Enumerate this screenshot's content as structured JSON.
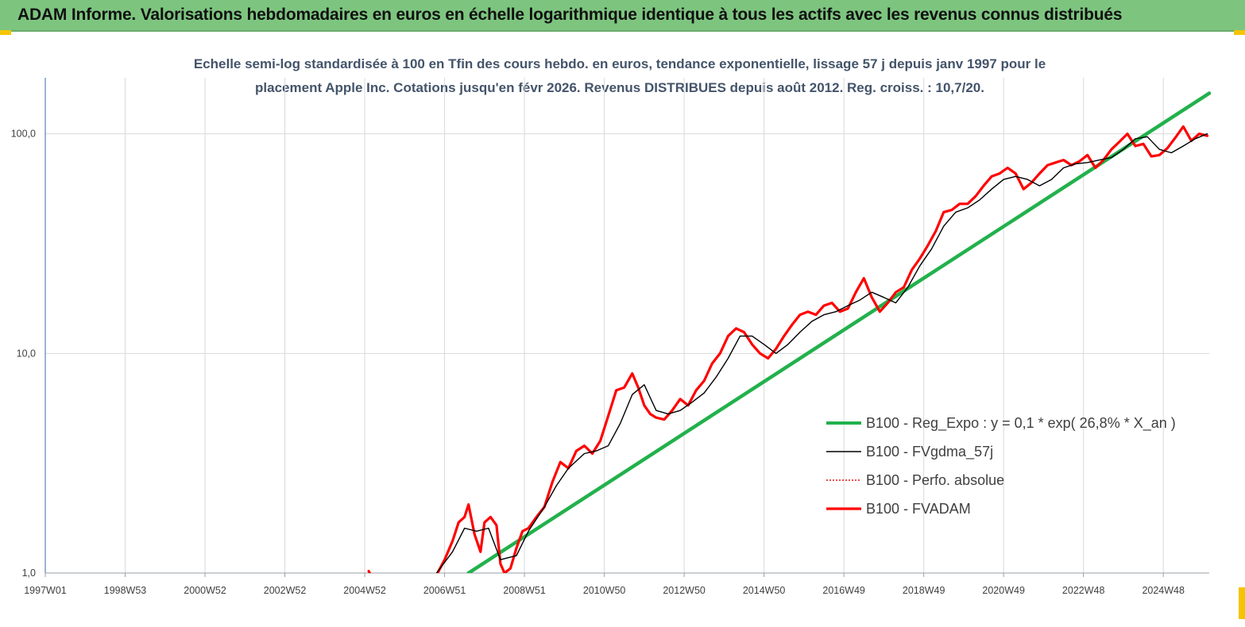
{
  "banner": {
    "title": "ADAM Informe. Valorisations hebdomadaires en euros en échelle logarithmique identique à tous les actifs avec les revenus connus distribués"
  },
  "colors": {
    "banner": "#7dc57f",
    "corner": "#f5c400",
    "regression": "#22b14c",
    "smoothed": "#000000",
    "absolute": "#e81010",
    "fvadam": "#ff0000"
  },
  "chart_data": {
    "type": "line",
    "title_lines": [
      "Echelle semi-log standardisée à 100 en Tfin des cours hebdo. en euros, tendance exponentielle, lissage 57 j depuis janv 1997 pour le",
      "placement Apple Inc.  Cotations jusqu'en févr 2026. Revenus DISTRIBUES depuis août 2012.  Reg. croiss. : 10,7/20."
    ],
    "y_scale": "log",
    "ylim": [
      1,
      180
    ],
    "xlim": [
      1997.0,
      2026.15
    ],
    "grid": true,
    "legend_position": "right",
    "x_tick_labels": [
      "1997W01",
      "1998W53",
      "2000W52",
      "2002W52",
      "2004W52",
      "2006W51",
      "2008W51",
      "2010W50",
      "2012W50",
      "2014W50",
      "2016W49",
      "2018W49",
      "2020W49",
      "2022W48",
      "2024W48"
    ],
    "x_tick_years": [
      1997.0,
      1999.0,
      2001.0,
      2003.0,
      2005.0,
      2007.0,
      2009.0,
      2011.0,
      2013.0,
      2015.0,
      2017.0,
      2019.0,
      2021.0,
      2023.0,
      2025.0
    ],
    "y_tick_labels": [
      "1,0",
      "10,0",
      "100,0"
    ],
    "y_tick_values": [
      1,
      10,
      100
    ],
    "legend": [
      {
        "key": "regression",
        "label": "B100 - Reg_Expo : y = 0,1 * exp( 26,8% *  X_an )"
      },
      {
        "key": "smoothed",
        "label": "B100 - FVgdma_57j"
      },
      {
        "key": "absolute",
        "label": "B100 - Perfo. absolue"
      },
      {
        "key": "fvadam",
        "label": "B100 - FVADAM"
      }
    ],
    "series": [
      {
        "name": "B100 - Reg_Expo : y = 0,1 * exp( 26,8% *  X_an )",
        "key": "regression",
        "x": [
          2007.6,
          2026.15
        ],
        "y": [
          1.0,
          153
        ]
      },
      {
        "name": "B100 - FVgdma_57j",
        "key": "smoothed",
        "x": [
          2006.8,
          2007.2,
          2007.5,
          2007.8,
          2008.1,
          2008.4,
          2008.8,
          2009.1,
          2009.5,
          2009.8,
          2010.1,
          2010.5,
          2010.8,
          2011.1,
          2011.4,
          2011.7,
          2012.0,
          2012.3,
          2012.6,
          2012.9,
          2013.2,
          2013.5,
          2013.8,
          2014.1,
          2014.4,
          2014.7,
          2015.0,
          2015.3,
          2015.6,
          2015.9,
          2016.2,
          2016.5,
          2016.8,
          2017.1,
          2017.4,
          2017.7,
          2018.0,
          2018.3,
          2018.6,
          2018.9,
          2019.2,
          2019.5,
          2019.8,
          2020.1,
          2020.4,
          2020.7,
          2021.0,
          2021.3,
          2021.6,
          2021.9,
          2022.2,
          2022.5,
          2022.8,
          2023.1,
          2023.4,
          2023.7,
          2024.0,
          2024.3,
          2024.6,
          2024.9,
          2025.2,
          2025.5,
          2025.8,
          2026.1
        ],
        "y": [
          1.0,
          1.25,
          1.6,
          1.55,
          1.6,
          1.15,
          1.2,
          1.55,
          2.0,
          2.5,
          3.0,
          3.5,
          3.6,
          3.8,
          4.8,
          6.5,
          7.2,
          5.5,
          5.3,
          5.5,
          6.0,
          6.6,
          7.8,
          9.5,
          12.0,
          12.0,
          11.0,
          10.0,
          11.0,
          12.5,
          14.0,
          15.0,
          15.5,
          16.5,
          17.5,
          19.0,
          18.0,
          17.0,
          20.0,
          25.0,
          30.0,
          38.0,
          44.0,
          46.0,
          50.0,
          56.0,
          62.0,
          64.0,
          62.0,
          58.0,
          62.0,
          70.0,
          73.0,
          74.0,
          76.0,
          78.0,
          85.0,
          95.0,
          97.0,
          85.0,
          82.0,
          88.0,
          95.0,
          100.0
        ]
      },
      {
        "name": "B100 - Perfo. absolue",
        "key": "absolute",
        "x": [],
        "y": []
      },
      {
        "name": "B100 - FVADAM",
        "key": "fvadam",
        "x": [
          2005.1,
          2005.15,
          2006.8,
          2007.0,
          2007.2,
          2007.35,
          2007.5,
          2007.6,
          2007.75,
          2007.9,
          2008.0,
          2008.15,
          2008.3,
          2008.4,
          2008.5,
          2008.65,
          2008.8,
          2008.95,
          2009.1,
          2009.3,
          2009.5,
          2009.7,
          2009.9,
          2010.1,
          2010.3,
          2010.5,
          2010.7,
          2010.9,
          2011.1,
          2011.3,
          2011.5,
          2011.7,
          2011.85,
          2012.0,
          2012.15,
          2012.3,
          2012.5,
          2012.7,
          2012.9,
          2013.1,
          2013.3,
          2013.5,
          2013.7,
          2013.9,
          2014.1,
          2014.3,
          2014.5,
          2014.7,
          2014.9,
          2015.1,
          2015.3,
          2015.5,
          2015.7,
          2015.9,
          2016.1,
          2016.3,
          2016.5,
          2016.7,
          2016.9,
          2017.1,
          2017.3,
          2017.5,
          2017.7,
          2017.9,
          2018.1,
          2018.3,
          2018.5,
          2018.7,
          2018.9,
          2019.1,
          2019.3,
          2019.5,
          2019.7,
          2019.9,
          2020.1,
          2020.3,
          2020.5,
          2020.7,
          2020.9,
          2021.1,
          2021.3,
          2021.5,
          2021.7,
          2021.9,
          2022.1,
          2022.3,
          2022.5,
          2022.7,
          2022.9,
          2023.1,
          2023.3,
          2023.5,
          2023.7,
          2023.9,
          2024.1,
          2024.3,
          2024.5,
          2024.7,
          2024.9,
          2025.1,
          2025.3,
          2025.5,
          2025.7,
          2025.9,
          2026.1
        ],
        "y": [
          1.02,
          0.98,
          0.98,
          1.15,
          1.4,
          1.7,
          1.8,
          2.05,
          1.5,
          1.25,
          1.7,
          1.8,
          1.65,
          1.1,
          1.0,
          1.05,
          1.3,
          1.55,
          1.6,
          1.8,
          2.0,
          2.6,
          3.2,
          3.0,
          3.6,
          3.8,
          3.5,
          4.0,
          5.2,
          6.8,
          7.0,
          8.1,
          7.0,
          5.8,
          5.3,
          5.1,
          5.0,
          5.5,
          6.2,
          5.8,
          6.8,
          7.5,
          9.0,
          10.0,
          12.0,
          13.0,
          12.5,
          11.0,
          10.0,
          9.5,
          10.5,
          12.0,
          13.5,
          15.0,
          15.5,
          15.0,
          16.5,
          17.0,
          15.5,
          16.0,
          19.0,
          22.0,
          18.0,
          15.5,
          17.0,
          19.0,
          20.0,
          24.0,
          27.0,
          31.0,
          36.0,
          44.0,
          45.0,
          48.0,
          48.0,
          52.0,
          58.0,
          64.0,
          66.0,
          70.0,
          66.0,
          56.0,
          60.0,
          66.0,
          72.0,
          74.0,
          76.0,
          72.0,
          75.0,
          80.0,
          70.0,
          76.0,
          85.0,
          92.0,
          100.0,
          88.0,
          90.0,
          79.0,
          80.0,
          86.0,
          96.0,
          108.0,
          93.0,
          100.0,
          98.0
        ]
      }
    ]
  }
}
